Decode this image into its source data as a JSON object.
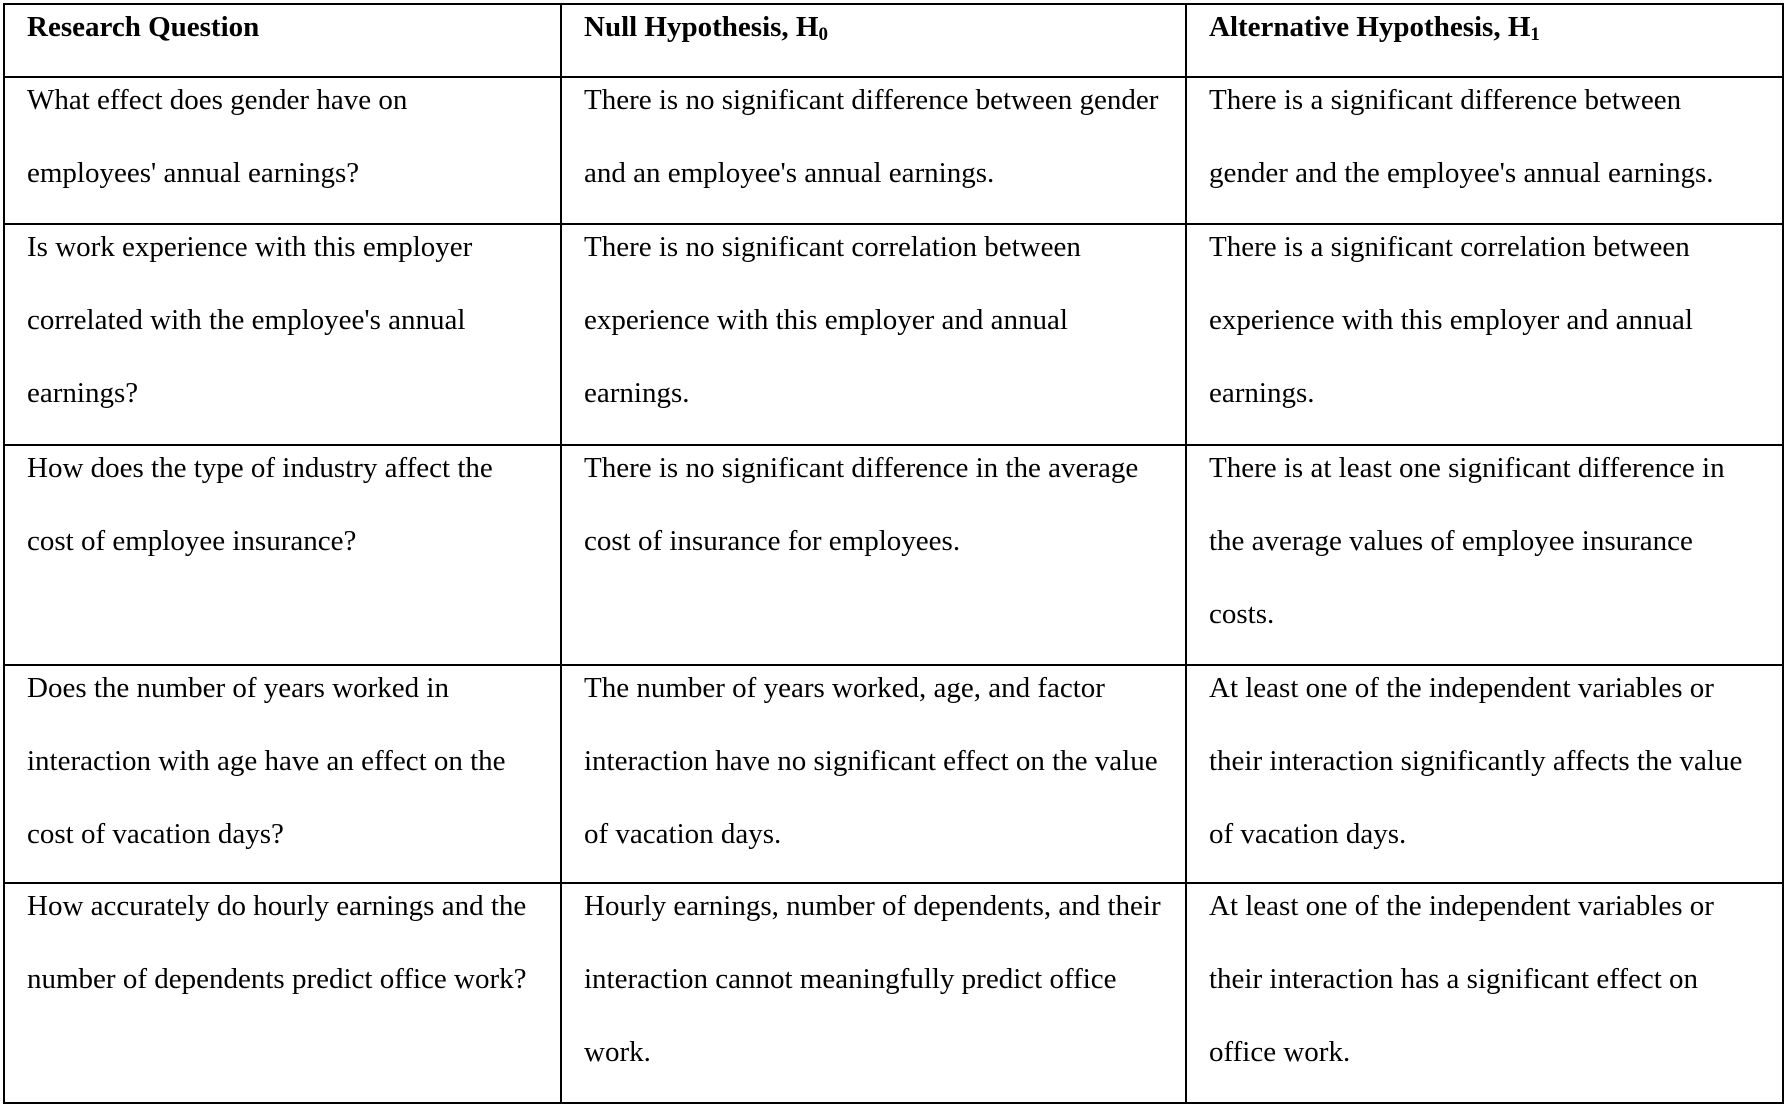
{
  "table": {
    "headers": [
      {
        "text": "Research Question",
        "sub": ""
      },
      {
        "text": "Null Hypothesis, H",
        "sub": "0"
      },
      {
        "text": "Alternative Hypothesis, H",
        "sub": "1"
      }
    ],
    "rows": [
      [
        "What effect does gender have on employees' annual earnings?",
        "There is no significant difference between gender and an employee's annual earnings.",
        "There is a significant difference between gender and the employee's annual earnings."
      ],
      [
        "Is work experience with this employer correlated with the employee's annual earnings?",
        "There is no significant correlation between experience with this employer and annual earnings.",
        "There is a significant correlation between experience with this employer and annual earnings."
      ],
      [
        "How does the type of industry affect the cost of employee insurance?",
        "There is no significant difference in the average cost of insurance for employees.",
        "There is at least one significant difference in the average values of employee insurance costs."
      ],
      [
        "Does the number of years worked in interaction with age have an effect on the cost of vacation days?",
        "The number of years worked, age, and factor interaction have no significant effect on the value of vacation days.",
        "At least one of the independent variables or their interaction significantly affects the value of vacation days."
      ],
      [
        "How accurately do hourly earnings and the number of dependents predict office work?",
        "Hourly earnings, number of dependents, and their interaction cannot meaningfully predict office work.",
        "At least one of the independent variables or their interaction has a significant effect on office work."
      ]
    ]
  }
}
